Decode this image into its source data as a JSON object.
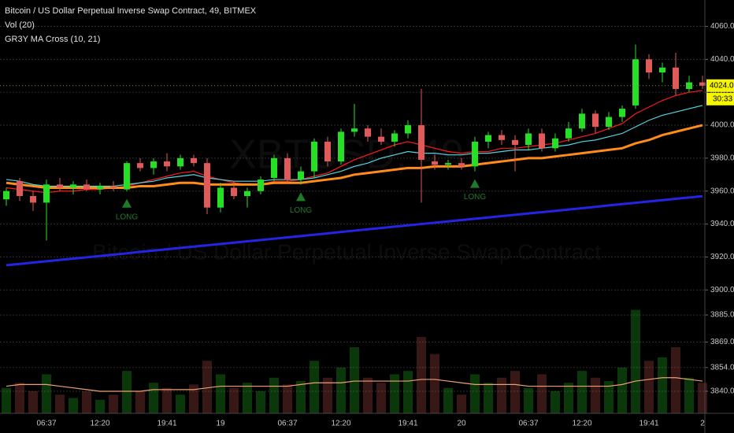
{
  "chart_data": {
    "type": "candlestick",
    "title": "Bitcoin / US Dollar Perpetual Inverse Swap Contract, 49, BITMEX",
    "indicator_labels": [
      "Vol (20)",
      "GR3Y MA Cross (10, 21)"
    ],
    "watermark": "XBTUSD, 49",
    "watermark_subtitle": "Bitcoin / US Dollar Perpetual Inverse Swap Contract",
    "up_color": "#26e026",
    "down_color": "#e05a5a",
    "categories": [
      null,
      null,
      null,
      "06:37",
      null,
      null,
      null,
      "12:20",
      null,
      null,
      null,
      null,
      "19:41",
      null,
      null,
      null,
      "19",
      null,
      null,
      null,
      null,
      "06:37",
      null,
      null,
      null,
      "12:20",
      null,
      null,
      null,
      null,
      "19:41",
      null,
      null,
      null,
      "20",
      null,
      null,
      null,
      null,
      "06:37",
      null,
      null,
      null,
      "12:20",
      null,
      null,
      null,
      null,
      "19:41",
      null,
      null,
      null,
      "2"
    ],
    "ohlc": [
      [
        3955,
        3962,
        3951,
        3960
      ],
      [
        3966,
        3968,
        3954,
        3957
      ],
      [
        3957,
        3960,
        3948,
        3953
      ],
      [
        3953,
        3967,
        3930,
        3964
      ],
      [
        3964,
        3968,
        3960,
        3962
      ],
      [
        3962,
        3966,
        3958,
        3964
      ],
      [
        3964,
        3967,
        3960,
        3961
      ],
      [
        3961,
        3965,
        3958,
        3963
      ],
      [
        3963,
        3966,
        3960,
        3962
      ],
      [
        3961,
        3978,
        3960,
        3977
      ],
      [
        3977,
        3980,
        3972,
        3974
      ],
      [
        3974,
        3980,
        3970,
        3978
      ],
      [
        3978,
        3983,
        3972,
        3975
      ],
      [
        3975,
        3982,
        3973,
        3980
      ],
      [
        3980,
        3982,
        3975,
        3977
      ],
      [
        3977,
        3980,
        3946,
        3950
      ],
      [
        3950,
        3965,
        3947,
        3962
      ],
      [
        3962,
        3966,
        3955,
        3957
      ],
      [
        3957,
        3962,
        3950,
        3960
      ],
      [
        3960,
        3969,
        3958,
        3967
      ],
      [
        3968,
        3982,
        3966,
        3980
      ],
      [
        3980,
        3983,
        3965,
        3967
      ],
      [
        3967,
        3975,
        3964,
        3972
      ],
      [
        3972,
        3992,
        3968,
        3990
      ],
      [
        3990,
        3993,
        3975,
        3978
      ],
      [
        3978,
        3998,
        3976,
        3996
      ],
      [
        3996,
        4013,
        3993,
        3998
      ],
      [
        3998,
        4000,
        3990,
        3993
      ],
      [
        3993,
        3998,
        3988,
        3990
      ],
      [
        3990,
        3997,
        3987,
        3995
      ],
      [
        3995,
        4003,
        3992,
        4000
      ],
      [
        4000,
        4022,
        3953,
        3979
      ],
      [
        3978,
        3982,
        3973,
        3976
      ],
      [
        3976,
        3979,
        3973,
        3977
      ],
      [
        3977,
        3980,
        3973,
        3975
      ],
      [
        3975,
        3993,
        3972,
        3990
      ],
      [
        3990,
        3996,
        3986,
        3994
      ],
      [
        3994,
        3997,
        3988,
        3991
      ],
      [
        3991,
        3994,
        3972,
        3988
      ],
      [
        3988,
        3998,
        3985,
        3995
      ],
      [
        3995,
        3998,
        3984,
        3986
      ],
      [
        3986,
        3995,
        3984,
        3992
      ],
      [
        3992,
        4002,
        3990,
        3998
      ],
      [
        3998,
        4010,
        3996,
        4007
      ],
      [
        4007,
        4009,
        3995,
        3999
      ],
      [
        3999,
        4008,
        3997,
        4005
      ],
      [
        4005,
        4012,
        4002,
        4010
      ],
      [
        4012,
        4049,
        4010,
        4040
      ],
      [
        4040,
        4043,
        4028,
        4032
      ],
      [
        4032,
        4038,
        4026,
        4035
      ],
      [
        4035,
        4044,
        4018,
        4022
      ],
      [
        4022,
        4030,
        4020,
        4026
      ],
      [
        4026,
        4030,
        4022,
        4024
      ]
    ],
    "series": [
      {
        "color": "#ff1a1a",
        "width": 1.2,
        "values": [
          3962,
          3961,
          3960,
          3959,
          3960,
          3960,
          3961,
          3961,
          3962,
          3963,
          3965,
          3967,
          3969,
          3971,
          3972,
          3969,
          3967,
          3965,
          3964,
          3964,
          3966,
          3966,
          3967,
          3969,
          3971,
          3975,
          3979,
          3982,
          3985,
          3988,
          3990,
          3988,
          3986,
          3984,
          3983,
          3984,
          3984,
          3986,
          3986,
          3987,
          3988,
          3989,
          3991,
          3993,
          3995,
          3998,
          4001,
          4007,
          4011,
          4015,
          4018,
          4020,
          4021
        ]
      },
      {
        "color": "#4fd6e0",
        "width": 1.2,
        "values": [
          3967,
          3966,
          3964,
          3963,
          3963,
          3963,
          3963,
          3963,
          3963,
          3964,
          3965,
          3966,
          3968,
          3969,
          3970,
          3968,
          3967,
          3966,
          3966,
          3966,
          3967,
          3967,
          3967,
          3968,
          3970,
          3972,
          3975,
          3977,
          3980,
          3982,
          3984,
          3983,
          3983,
          3982,
          3982,
          3983,
          3983,
          3984,
          3985,
          3985,
          3986,
          3987,
          3988,
          3990,
          3991,
          3993,
          3995,
          3999,
          4003,
          4006,
          4008,
          4010,
          4012
        ]
      },
      {
        "color": "#ff8c1a",
        "width": 3,
        "values": [
          3965,
          3964,
          3963,
          3962,
          3962,
          3962,
          3962,
          3962,
          3962,
          3962,
          3963,
          3963,
          3964,
          3965,
          3965,
          3964,
          3964,
          3964,
          3964,
          3964,
          3965,
          3965,
          3965,
          3966,
          3967,
          3968,
          3970,
          3971,
          3972,
          3973,
          3974,
          3974,
          3975,
          3975,
          3975,
          3976,
          3977,
          3978,
          3979,
          3980,
          3980,
          3981,
          3982,
          3983,
          3984,
          3985,
          3986,
          3989,
          3991,
          3994,
          3996,
          3998,
          4000
        ]
      },
      {
        "color": "#2424e6",
        "width": 3,
        "values": [
          3915.0,
          3915.8,
          3916.6,
          3917.4,
          3918.2,
          3919.0,
          3919.8,
          3920.6,
          3921.4,
          3922.2,
          3923.1,
          3923.9,
          3924.7,
          3925.5,
          3926.3,
          3927.1,
          3927.9,
          3928.7,
          3929.5,
          3930.3,
          3931.1,
          3931.9,
          3932.7,
          3933.5,
          3934.3,
          3935.2,
          3936.0,
          3936.8,
          3937.6,
          3938.4,
          3939.2,
          3940.0,
          3940.8,
          3941.6,
          3942.4,
          3943.2,
          3944.0,
          3944.8,
          3945.6,
          3946.4,
          3947.2,
          3948.0,
          3948.8,
          3949.6,
          3950.4,
          3951.3,
          3952.1,
          3952.9,
          3953.7,
          3954.5,
          3955.3,
          3956.1,
          3956.9
        ]
      }
    ],
    "signals": [
      null,
      null,
      null,
      null,
      null,
      null,
      null,
      null,
      null,
      "LONG",
      null,
      null,
      null,
      null,
      null,
      null,
      null,
      null,
      null,
      null,
      null,
      null,
      "LONG",
      null,
      null,
      null,
      null,
      null,
      null,
      null,
      null,
      null,
      null,
      null,
      null,
      "LONG",
      null,
      null,
      null,
      null,
      null,
      null,
      null,
      null,
      null,
      null,
      null,
      null,
      null,
      null,
      null,
      null,
      null
    ],
    "signal_color": "#1f7a2a",
    "ylim": [
      3892,
      4076
    ],
    "yticks": [
      {
        "value": 4060,
        "label": "4060.0"
      },
      {
        "value": 4040,
        "label": "4040.0"
      },
      {
        "value": 4020,
        "label": "4020.0"
      },
      {
        "value": 4000,
        "label": "4000.0"
      },
      {
        "value": 3980,
        "label": "3980.0"
      },
      {
        "value": 3960,
        "label": "3960.0"
      },
      {
        "value": 3940,
        "label": "3940.0"
      },
      {
        "value": 3920,
        "label": "3920.0"
      },
      {
        "value": 3900,
        "label": "3900.0"
      }
    ],
    "grid": true,
    "last_price": {
      "value": 4024,
      "label": "4024.0"
    },
    "countdown": "30:33",
    "volume": [
      3842,
      3845,
      3840,
      3850,
      3838,
      3836,
      3840,
      3835,
      3838,
      3852,
      3840,
      3845,
      3842,
      3838,
      3844,
      3858,
      3850,
      3842,
      3845,
      3840,
      3848,
      3844,
      3846,
      3858,
      3848,
      3854,
      3866,
      3848,
      3845,
      3850,
      3852,
      3872,
      3862,
      3842,
      3838,
      3850,
      3845,
      3848,
      3852,
      3842,
      3850,
      3840,
      3845,
      3852,
      3848,
      3846,
      3854,
      3888,
      3858,
      3860,
      3866,
      3848,
      3845
    ],
    "volume_ma": {
      "color": "#f0a070",
      "values": [
        3843,
        3844,
        3844,
        3844,
        3843,
        3842,
        3841,
        3840,
        3840,
        3840,
        3840,
        3841,
        3841,
        3841,
        3841,
        3842,
        3843,
        3843,
        3843,
        3843,
        3843,
        3843,
        3844,
        3845,
        3845,
        3845,
        3846,
        3846,
        3846,
        3846,
        3846,
        3847,
        3847,
        3846,
        3845,
        3844,
        3844,
        3844,
        3844,
        3843,
        3843,
        3843,
        3843,
        3843,
        3843,
        3843,
        3844,
        3846,
        3847,
        3848,
        3848,
        3847,
        3846
      ]
    },
    "y2lim": [
      3827,
      3892
    ],
    "y2ticks": [
      {
        "value": 3885,
        "label": "3885.0"
      },
      {
        "value": 3869,
        "label": "3869.0"
      },
      {
        "value": 3854,
        "label": "3854.0"
      },
      {
        "value": 3840,
        "label": "3840.0"
      }
    ]
  }
}
